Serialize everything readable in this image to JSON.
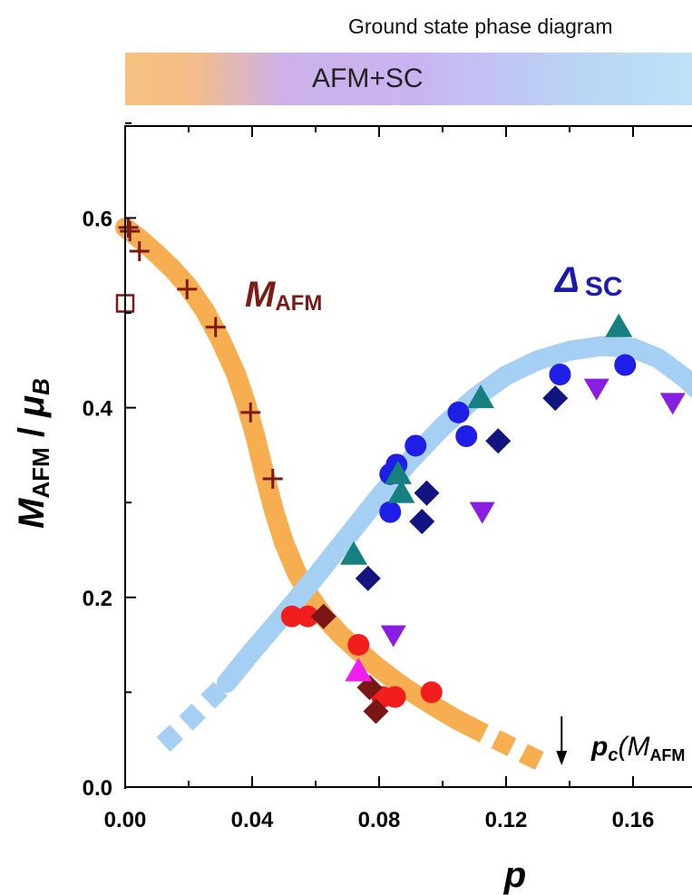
{
  "chart_data": {
    "type": "scatter",
    "title": "Ground state phase diagram",
    "phase_band": {
      "label": "AFM+SC",
      "colors": [
        "#f7c27e",
        "#c9b4f3",
        "#bfe4f7"
      ]
    },
    "xlabel": "p",
    "ylabel_main": "M",
    "ylabel_sub": "AFM",
    "ylabel_sep": " / ",
    "ylabel_mu": "μ",
    "ylabel_mu_sub": "B",
    "xlim": [
      0.0,
      0.178
    ],
    "ylim": [
      0.0,
      0.7
    ],
    "xticks": [
      "0.00",
      "0.04",
      "0.08",
      "0.12",
      "0.16"
    ],
    "xtick_values": [
      0.0,
      0.04,
      0.08,
      0.12,
      0.16
    ],
    "yticks": [
      "0.0",
      "0.2",
      "0.4",
      "0.6"
    ],
    "ytick_values": [
      0.0,
      0.2,
      0.4,
      0.6
    ],
    "annotations": {
      "m_afm_main": "M",
      "m_afm_sub": "AFM",
      "delta_main": "Δ",
      "delta_sub": "SC",
      "pc_main": "p",
      "pc_sub": "c",
      "pc_paren": "(M",
      "pc_paren_sub": "AFM",
      "pc_x": 0.1375
    },
    "curves": [
      {
        "name": "M_AFM trend",
        "color": "#f7ae50",
        "solid": [
          [
            0.0,
            0.59
          ],
          [
            0.005,
            0.577
          ],
          [
            0.01,
            0.562
          ],
          [
            0.015,
            0.546
          ],
          [
            0.02,
            0.527
          ],
          [
            0.025,
            0.503
          ],
          [
            0.03,
            0.472
          ],
          [
            0.035,
            0.435
          ],
          [
            0.038,
            0.405
          ],
          [
            0.041,
            0.37
          ],
          [
            0.044,
            0.328
          ],
          [
            0.047,
            0.29
          ],
          [
            0.05,
            0.258
          ],
          [
            0.054,
            0.226
          ],
          [
            0.058,
            0.202
          ],
          [
            0.063,
            0.178
          ],
          [
            0.068,
            0.16
          ],
          [
            0.074,
            0.142
          ],
          [
            0.08,
            0.125
          ],
          [
            0.088,
            0.105
          ],
          [
            0.096,
            0.088
          ],
          [
            0.104,
            0.072
          ],
          [
            0.108,
            0.065
          ]
        ],
        "dashed": [
          [
            0.108,
            0.065
          ],
          [
            0.114,
            0.055
          ],
          [
            0.12,
            0.045
          ],
          [
            0.126,
            0.035
          ],
          [
            0.134,
            0.022
          ]
        ]
      },
      {
        "name": "Delta_SC trend",
        "color": "#a6d0f3",
        "solid": [
          [
            0.032,
            0.11
          ],
          [
            0.04,
            0.143
          ],
          [
            0.05,
            0.182
          ],
          [
            0.06,
            0.222
          ],
          [
            0.07,
            0.264
          ],
          [
            0.08,
            0.306
          ],
          [
            0.09,
            0.345
          ],
          [
            0.1,
            0.38
          ],
          [
            0.11,
            0.41
          ],
          [
            0.12,
            0.434
          ],
          [
            0.13,
            0.45
          ],
          [
            0.14,
            0.46
          ],
          [
            0.15,
            0.465
          ],
          [
            0.16,
            0.463
          ],
          [
            0.168,
            0.452
          ],
          [
            0.176,
            0.432
          ],
          [
            0.18,
            0.42
          ]
        ],
        "dashed": [
          [
            0.012,
            0.045
          ],
          [
            0.02,
            0.07
          ],
          [
            0.026,
            0.09
          ],
          [
            0.032,
            0.11
          ]
        ]
      }
    ],
    "series": [
      {
        "name": "M_AFM plus",
        "marker": "plus",
        "color": "#7b1a16",
        "points": [
          [
            0.001,
            0.59
          ],
          [
            0.0015,
            0.586
          ],
          [
            0.0045,
            0.565
          ],
          [
            0.0195,
            0.525
          ],
          [
            0.0285,
            0.485
          ],
          [
            0.0395,
            0.395
          ],
          [
            0.0465,
            0.325
          ]
        ]
      },
      {
        "name": "M_AFM open square",
        "marker": "open-square",
        "color": "#7b1a16",
        "points": [
          [
            0.0,
            0.51
          ]
        ]
      },
      {
        "name": "M_AFM red circles",
        "marker": "circle",
        "color": "#f21d1d",
        "points": [
          [
            0.0525,
            0.18
          ],
          [
            0.0575,
            0.18
          ],
          [
            0.0735,
            0.15
          ],
          [
            0.081,
            0.095
          ],
          [
            0.085,
            0.095
          ],
          [
            0.0965,
            0.1
          ]
        ]
      },
      {
        "name": "M_AFM dark-red diamonds",
        "marker": "diamond",
        "color": "#7a1616",
        "points": [
          [
            0.0625,
            0.18
          ],
          [
            0.077,
            0.105
          ],
          [
            0.079,
            0.08
          ]
        ]
      },
      {
        "name": "Delta blue circles",
        "marker": "circle",
        "color": "#1e1ee6",
        "points": [
          [
            0.0835,
            0.29
          ],
          [
            0.0835,
            0.33
          ],
          [
            0.0855,
            0.34
          ],
          [
            0.0915,
            0.36
          ],
          [
            0.105,
            0.395
          ],
          [
            0.1075,
            0.37
          ],
          [
            0.137,
            0.435
          ],
          [
            0.1575,
            0.445
          ]
        ]
      },
      {
        "name": "Delta navy diamonds",
        "marker": "diamond",
        "color": "#121580",
        "points": [
          [
            0.0765,
            0.22
          ],
          [
            0.0935,
            0.28
          ],
          [
            0.095,
            0.31
          ],
          [
            0.1175,
            0.365
          ],
          [
            0.1355,
            0.41
          ]
        ]
      },
      {
        "name": "Delta teal up-triangles",
        "marker": "triangle-up",
        "color": "#168080",
        "points": [
          [
            0.072,
            0.245
          ],
          [
            0.086,
            0.33
          ],
          [
            0.087,
            0.31
          ],
          [
            0.112,
            0.41
          ],
          [
            0.1555,
            0.485
          ]
        ]
      },
      {
        "name": "Delta violet down-triangles",
        "marker": "triangle-down",
        "color": "#8a1ee0",
        "points": [
          [
            0.0845,
            0.16
          ],
          [
            0.1125,
            0.29
          ],
          [
            0.1485,
            0.42
          ],
          [
            0.1725,
            0.405
          ]
        ]
      },
      {
        "name": "Magenta up-triangle",
        "marker": "triangle-up",
        "color": "#f01ef0",
        "points": [
          [
            0.0735,
            0.122
          ]
        ]
      }
    ]
  }
}
